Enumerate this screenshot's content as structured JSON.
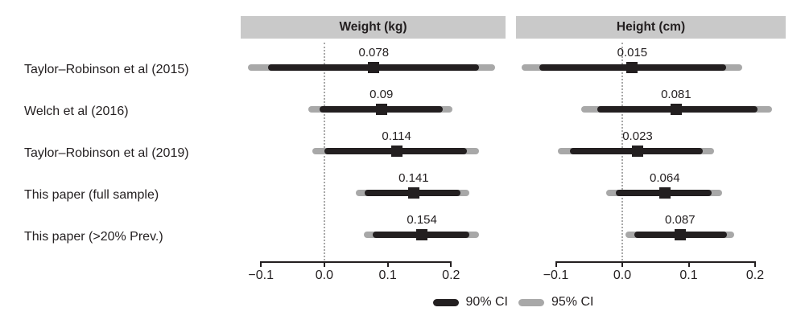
{
  "colors": {
    "ci90": "#231f20",
    "ci95": "#a8a8a8",
    "marker": "#231f20",
    "header_bg": "#c9c9c9",
    "zero_line": "#a8a8a8",
    "axis": "#231f20",
    "text": "#231f20",
    "background": "#ffffff"
  },
  "chart_data": {
    "type": "forest",
    "title": "",
    "studies": [
      "Taylor–Robinson et al (2015)",
      "Welch et al (2016)",
      "Taylor–Robinson et al (2019)",
      "This paper (full sample)",
      "This paper (>20% Prev.)"
    ],
    "x_ticks": [
      {
        "value": -0.1,
        "label": "−0.1"
      },
      {
        "value": 0.0,
        "label": "0.0"
      },
      {
        "value": 0.1,
        "label": "0.1"
      },
      {
        "value": 0.2,
        "label": "0.2"
      }
    ],
    "zero_reference": 0.0,
    "grid": "zero-reference dotted line only",
    "legend_position": "bottom-center",
    "panels": [
      {
        "title": "Weight (kg)",
        "xlim": [
          -0.132,
          0.286
        ],
        "rows": [
          {
            "estimate": 0.078,
            "estimate_label": "0.078",
            "ci90": [
              -0.089,
              0.244
            ],
            "ci95": [
              -0.121,
              0.269
            ]
          },
          {
            "estimate": 0.09,
            "estimate_label": "0.09",
            "ci90": [
              -0.008,
              0.187
            ],
            "ci95": [
              -0.025,
              0.202
            ]
          },
          {
            "estimate": 0.114,
            "estimate_label": "0.114",
            "ci90": [
              0.0,
              0.225
            ],
            "ci95": [
              -0.019,
              0.244
            ]
          },
          {
            "estimate": 0.141,
            "estimate_label": "0.141",
            "ci90": [
              0.064,
              0.215
            ],
            "ci95": [
              0.05,
              0.229
            ]
          },
          {
            "estimate": 0.154,
            "estimate_label": "0.154",
            "ci90": [
              0.076,
              0.229
            ],
            "ci95": [
              0.062,
              0.244
            ]
          }
        ]
      },
      {
        "title": "Height (cm)",
        "xlim": [
          -0.16,
          0.246
        ],
        "rows": [
          {
            "estimate": 0.015,
            "estimate_label": "0.015",
            "ci90": [
              -0.125,
              0.156
            ],
            "ci95": [
              -0.151,
              0.18
            ]
          },
          {
            "estimate": 0.081,
            "estimate_label": "0.081",
            "ci90": [
              -0.037,
              0.204
            ],
            "ci95": [
              -0.062,
              0.226
            ]
          },
          {
            "estimate": 0.023,
            "estimate_label": "0.023",
            "ci90": [
              -0.079,
              0.121
            ],
            "ci95": [
              -0.097,
              0.138
            ]
          },
          {
            "estimate": 0.064,
            "estimate_label": "0.064",
            "ci90": [
              -0.01,
              0.134
            ],
            "ci95": [
              -0.024,
              0.15
            ]
          },
          {
            "estimate": 0.087,
            "estimate_label": "0.087",
            "ci90": [
              0.018,
              0.157
            ],
            "ci95": [
              0.005,
              0.169
            ]
          }
        ]
      }
    ],
    "legend": [
      {
        "label": "90% CI",
        "color": "#231f20"
      },
      {
        "label": "95% CI",
        "color": "#a8a8a8"
      }
    ]
  }
}
